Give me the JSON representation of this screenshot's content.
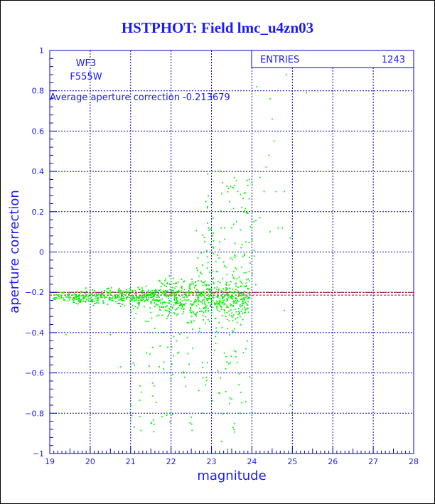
{
  "chart_data": {
    "type": "scatter",
    "title": "HSTPHOT: Field lmc_u4zn03",
    "xlabel": "magnitude",
    "ylabel": "aperture correction",
    "xlim": [
      19,
      28
    ],
    "ylim": [
      -1,
      1
    ],
    "x_ticks": [
      "19",
      "20",
      "21",
      "22",
      "23",
      "24",
      "25",
      "26",
      "27",
      "28"
    ],
    "y_ticks": [
      "-1",
      "-0.8",
      "-0.6",
      "-0.4",
      "-0.2",
      "0",
      "0.2",
      "0.4",
      "0.6",
      "0.8",
      "1"
    ],
    "grid": true,
    "annotations": {
      "camera": "WF3",
      "filter": "F555W",
      "average_text": "Average aperture correction -0.213679"
    },
    "stats_box": {
      "label": "ENTRIES",
      "value": "1243"
    },
    "reference_lines": [
      {
        "y": -0.213679,
        "color": "#cc0000"
      },
      {
        "y": -0.2,
        "color": "#cc0000"
      }
    ],
    "series": [
      {
        "color": "#00ee00",
        "point_count": 1243,
        "points_sample": [
          [
            24.85,
            0.88
          ],
          [
            25.35,
            0.79
          ],
          [
            24.12,
            0.82
          ],
          [
            24.45,
            0.76
          ],
          [
            24.5,
            0.66
          ],
          [
            24.55,
            0.55
          ],
          [
            24.42,
            0.48
          ],
          [
            24.35,
            0.42
          ],
          [
            24.2,
            0.37
          ],
          [
            24.3,
            0.3
          ],
          [
            24.6,
            0.3
          ],
          [
            24.8,
            0.3
          ],
          [
            23.9,
            0.33
          ],
          [
            23.65,
            0.3
          ],
          [
            23.45,
            0.25
          ],
          [
            23.75,
            0.22
          ],
          [
            24.05,
            0.15
          ],
          [
            24.2,
            0.17
          ],
          [
            24.0,
            0.12
          ],
          [
            24.65,
            0.12
          ],
          [
            24.45,
            0.1
          ],
          [
            24.75,
            0.12
          ],
          [
            24.95,
            0.07
          ],
          [
            23.2,
            0.05
          ],
          [
            23.5,
            0.12
          ],
          [
            23.05,
            0.02
          ],
          [
            23.85,
            0.05
          ],
          [
            23.6,
            -0.02
          ],
          [
            23.3,
            -0.05
          ],
          [
            22.95,
            -0.1
          ],
          [
            22.6,
            -0.15
          ],
          [
            22.1,
            -0.18
          ],
          [
            19.1,
            -0.23
          ],
          [
            19.35,
            -0.2
          ],
          [
            19.6,
            -0.25
          ],
          [
            19.9,
            -0.22
          ],
          [
            20.2,
            -0.24
          ],
          [
            20.5,
            -0.2
          ],
          [
            20.8,
            -0.26
          ],
          [
            21.1,
            -0.23
          ],
          [
            21.4,
            -0.21
          ],
          [
            21.7,
            -0.24
          ],
          [
            22.0,
            -0.22
          ],
          [
            22.3,
            -0.26
          ],
          [
            22.6,
            -0.2
          ],
          [
            22.9,
            -0.23
          ],
          [
            23.3,
            -0.25
          ],
          [
            23.6,
            -0.2
          ],
          [
            23.9,
            -0.23
          ],
          [
            19.4,
            -0.41
          ],
          [
            20.5,
            -0.41
          ],
          [
            21.5,
            -0.3
          ],
          [
            21.8,
            -0.4
          ],
          [
            22.4,
            -0.35
          ],
          [
            22.8,
            -0.3
          ],
          [
            23.1,
            -0.4
          ],
          [
            23.4,
            -0.38
          ],
          [
            20.75,
            -0.57
          ],
          [
            21.0,
            -0.5
          ],
          [
            21.55,
            -0.65
          ],
          [
            22.3,
            -0.6
          ],
          [
            22.9,
            -0.55
          ],
          [
            23.35,
            -0.58
          ],
          [
            23.6,
            -0.52
          ],
          [
            23.85,
            -0.48
          ],
          [
            23.95,
            -0.62
          ],
          [
            21.5,
            -0.85
          ],
          [
            21.9,
            -0.8
          ],
          [
            22.5,
            -0.82
          ],
          [
            22.85,
            -0.66
          ],
          [
            23.2,
            -0.7
          ],
          [
            23.5,
            -0.73
          ],
          [
            23.7,
            -0.8
          ],
          [
            23.95,
            -0.8
          ],
          [
            23.25,
            -0.94
          ],
          [
            23.4,
            -0.98
          ],
          [
            24.95,
            -0.76
          ],
          [
            24.8,
            -0.29
          ]
        ]
      }
    ]
  }
}
